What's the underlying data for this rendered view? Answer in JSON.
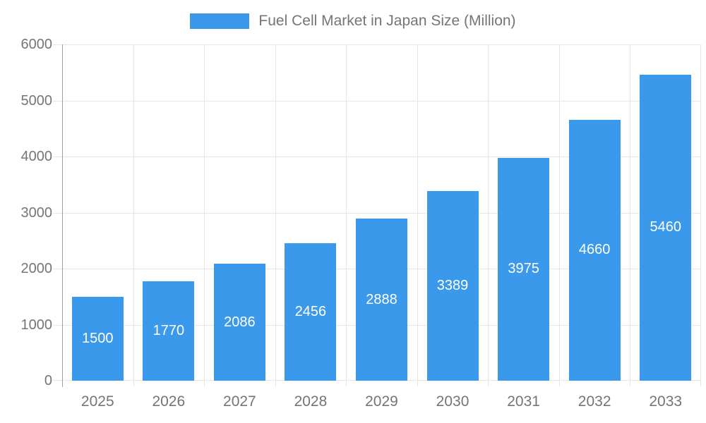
{
  "legend": {
    "label": "Fuel Cell Market in Japan Size (Million)"
  },
  "colors": {
    "bar": "#3B99EC",
    "grid": "#E6E6E6",
    "axis_line": "#9E9E9E",
    "tick_text": "#757575",
    "value_label_text": "#FFFFFF",
    "background": "#FFFFFF"
  },
  "chart_data": {
    "type": "bar",
    "title": "Fuel Cell Market in Japan Size (Million)",
    "series_name": "Fuel Cell Market in Japan Size (Million)",
    "categories": [
      "2025",
      "2026",
      "2027",
      "2028",
      "2029",
      "2030",
      "2031",
      "2032",
      "2033"
    ],
    "values": [
      1500,
      1770,
      2086,
      2456,
      2888,
      3389,
      3975,
      4660,
      5460
    ],
    "value_labels": [
      "1500",
      "1770",
      "2086",
      "2456",
      "2888",
      "3389",
      "3975",
      "4660",
      "5460"
    ],
    "xlabel": "",
    "ylabel": "",
    "ylim": [
      0,
      6000
    ],
    "yticks": [
      0,
      1000,
      2000,
      3000,
      4000,
      5000,
      6000
    ],
    "ytick_labels": [
      "0",
      "1000",
      "2000",
      "3000",
      "4000",
      "5000",
      "6000"
    ],
    "grid": true,
    "legend_position": "top-center",
    "value_label_position": "inside-center"
  }
}
